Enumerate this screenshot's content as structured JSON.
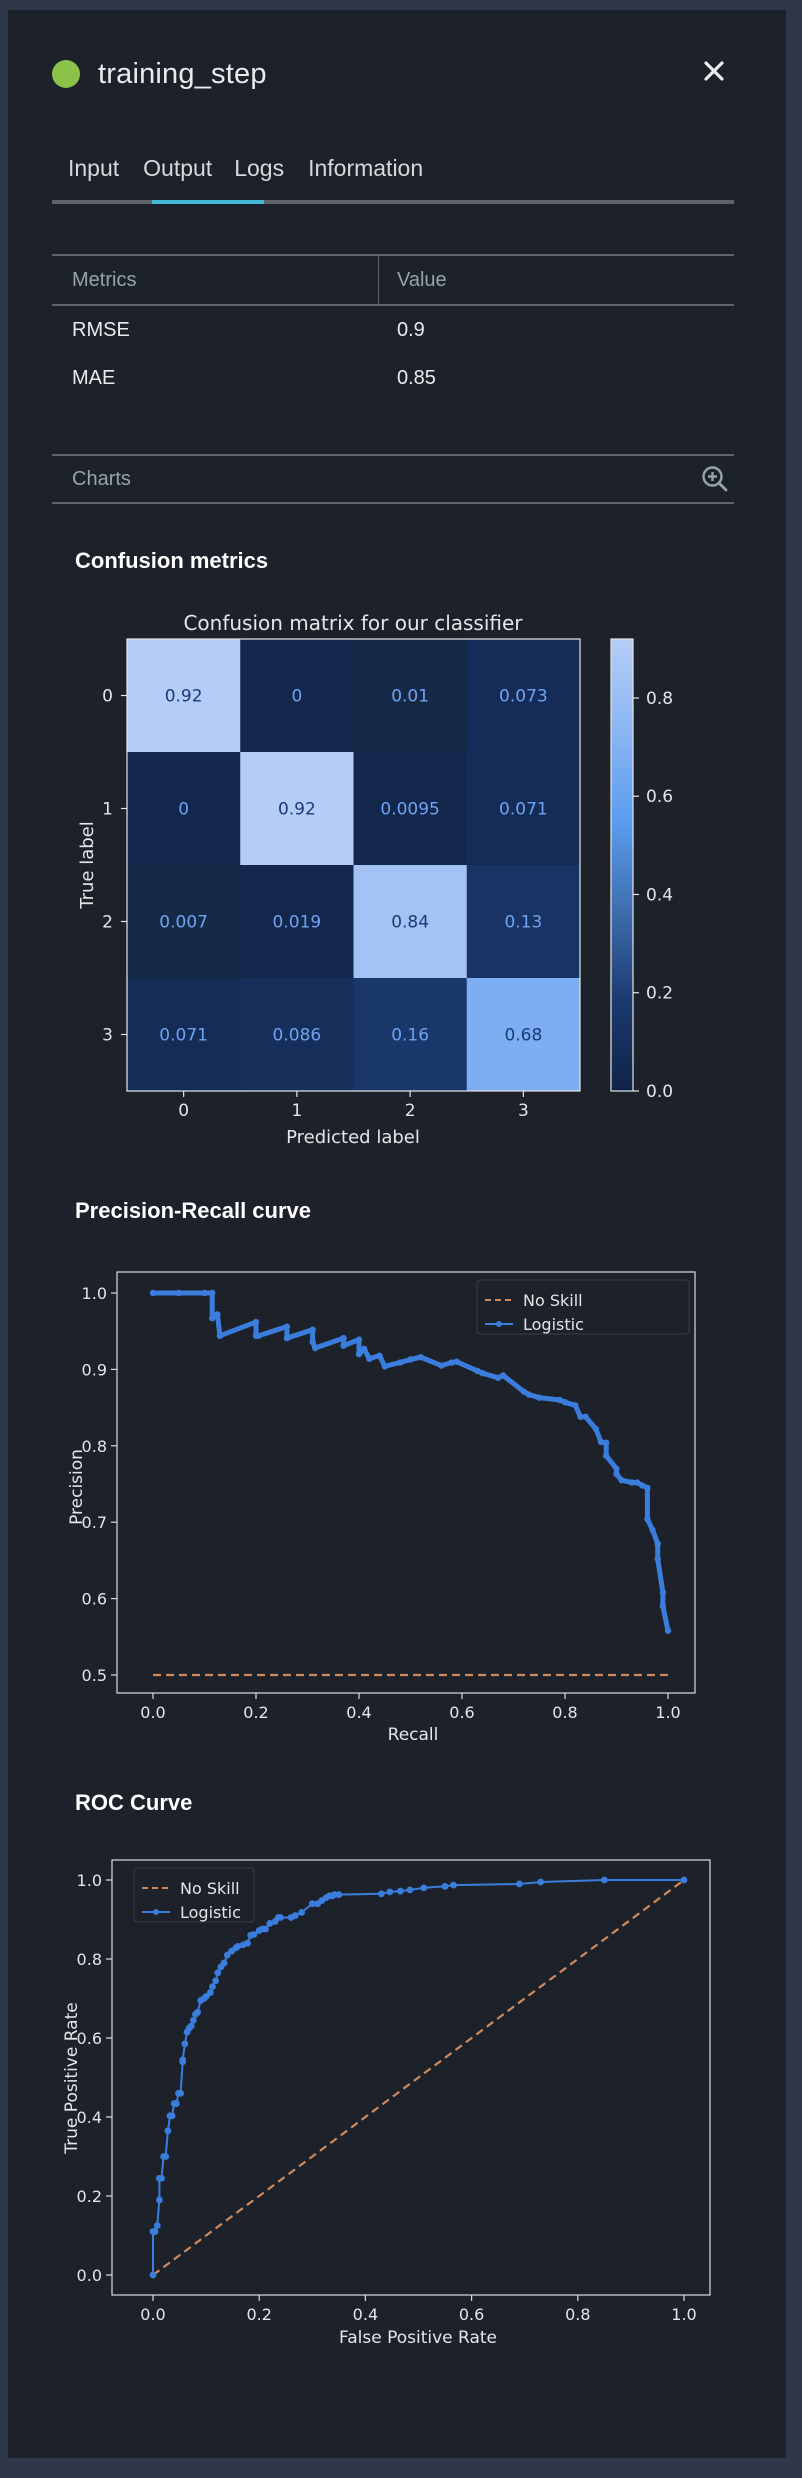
{
  "header": {
    "title": "training_step",
    "status_color": "#8bc34a",
    "close_icon": "close-icon",
    "close_glyph": "✕"
  },
  "tabs": [
    {
      "label": "Input",
      "active": false
    },
    {
      "label": "Output",
      "active": true
    },
    {
      "label": "Logs",
      "active": false
    },
    {
      "label": "Information",
      "active": false
    }
  ],
  "metrics_table": {
    "columns": [
      "Metrics",
      "Value"
    ],
    "rows": [
      {
        "metric": "RMSE",
        "value": "0.9"
      },
      {
        "metric": "MAE",
        "value": "0.85"
      }
    ]
  },
  "charts_section": {
    "label": "Charts",
    "icon": "zoom-in-icon"
  },
  "sections": {
    "confusion": "Confusion metrics",
    "pr": "Precision-Recall curve",
    "roc": "ROC Curve"
  },
  "colors": {
    "accent": "#44b9d6",
    "logistic": "#3b7ddd",
    "no_skill": "#d0895a"
  },
  "chart_data": [
    {
      "type": "heatmap",
      "title": "Confusion matrix for our classifier",
      "xlabel": "Predicted label",
      "ylabel": "True label",
      "x_ticks": [
        "0",
        "1",
        "2",
        "3"
      ],
      "y_ticks": [
        "0",
        "1",
        "2",
        "3"
      ],
      "values": [
        [
          0.92,
          0,
          0.01,
          0.073
        ],
        [
          0,
          0.92,
          0.0095,
          0.071
        ],
        [
          0.007,
          0.019,
          0.84,
          0.13
        ],
        [
          0.071,
          0.086,
          0.16,
          0.68
        ]
      ],
      "labels": [
        [
          "0.92",
          "0",
          "0.01",
          "0.073"
        ],
        [
          "0",
          "0.92",
          "0.0095",
          "0.071"
        ],
        [
          "0.007",
          "0.019",
          "0.84",
          "0.13"
        ],
        [
          "0.071",
          "0.086",
          "0.16",
          "0.68"
        ]
      ],
      "colorbar": {
        "range": [
          0,
          0.92
        ],
        "ticks": [
          "0.0",
          "0.2",
          "0.4",
          "0.6",
          "0.8"
        ],
        "tick_values": [
          0,
          0.2,
          0.4,
          0.6,
          0.8
        ]
      }
    },
    {
      "type": "line",
      "title": "",
      "xlabel": "Recall",
      "ylabel": "Precision",
      "xlim": [
        -0.05,
        1.05
      ],
      "ylim": [
        0.476,
        1.022
      ],
      "x_ticks": [
        "0.0",
        "0.2",
        "0.4",
        "0.6",
        "0.8",
        "1.0"
      ],
      "x_tick_values": [
        0,
        0.2,
        0.4,
        0.6,
        0.8,
        1.0
      ],
      "y_ticks": [
        "0.5",
        "0.6",
        "0.7",
        "0.8",
        "0.9",
        "1.0"
      ],
      "y_tick_values": [
        0.5,
        0.6,
        0.7,
        0.8,
        0.9,
        1.0
      ],
      "legend": "top-right",
      "series": [
        {
          "name": "No Skill",
          "style": "dashed",
          "x": [
            0,
            1
          ],
          "y": [
            0.5,
            0.5
          ]
        },
        {
          "name": "Logistic",
          "style": "solid-marker",
          "x": [
            0.0,
            0.05,
            0.1,
            0.115,
            0.115,
            0.12,
            0.125,
            0.13,
            0.13,
            0.2,
            0.2,
            0.205,
            0.26,
            0.26,
            0.31,
            0.31,
            0.315,
            0.37,
            0.37,
            0.4,
            0.4,
            0.41,
            0.42,
            0.44,
            0.45,
            0.48,
            0.5,
            0.52,
            0.56,
            0.58,
            0.59,
            0.63,
            0.64,
            0.67,
            0.68,
            0.72,
            0.73,
            0.75,
            0.79,
            0.8,
            0.82,
            0.83,
            0.84,
            0.86,
            0.87,
            0.88,
            0.88,
            0.9,
            0.9,
            0.91,
            0.93,
            0.94,
            0.95,
            0.96,
            0.96,
            0.97,
            0.98,
            0.98,
            0.99,
            0.99,
            1.0
          ],
          "y": [
            1.0,
            1.0,
            1.0,
            1.0,
            0.967,
            0.97,
            0.972,
            0.944,
            0.944,
            0.962,
            0.944,
            0.944,
            0.956,
            0.941,
            0.952,
            0.936,
            0.928,
            0.941,
            0.931,
            0.939,
            0.92,
            0.927,
            0.914,
            0.918,
            0.904,
            0.909,
            0.913,
            0.916,
            0.905,
            0.909,
            0.91,
            0.898,
            0.895,
            0.889,
            0.892,
            0.871,
            0.867,
            0.863,
            0.86,
            0.857,
            0.853,
            0.838,
            0.838,
            0.822,
            0.805,
            0.804,
            0.787,
            0.77,
            0.763,
            0.755,
            0.752,
            0.752,
            0.748,
            0.745,
            0.704,
            0.69,
            0.672,
            0.652,
            0.608,
            0.59,
            0.558
          ]
        }
      ]
    },
    {
      "type": "line",
      "title": "",
      "xlabel": "False Positive Rate",
      "ylabel": "True Positive Rate",
      "xlim": [
        -0.05,
        1.05
      ],
      "ylim": [
        -0.05,
        1.05
      ],
      "x_ticks": [
        "0.0",
        "0.2",
        "0.4",
        "0.6",
        "0.8",
        "1.0"
      ],
      "x_tick_values": [
        0,
        0.2,
        0.4,
        0.6,
        0.8,
        1.0
      ],
      "y_ticks": [
        "0.0",
        "0.2",
        "0.4",
        "0.6",
        "0.8",
        "1.0"
      ],
      "y_tick_values": [
        0,
        0.2,
        0.4,
        0.6,
        0.8,
        1.0
      ],
      "legend": "top-left",
      "series": [
        {
          "name": "No Skill",
          "style": "dashed",
          "x": [
            0,
            1
          ],
          "y": [
            0,
            1
          ]
        },
        {
          "name": "Logistic",
          "style": "solid-marker",
          "x": [
            0.0,
            0.0,
            0.004,
            0.008,
            0.012,
            0.012,
            0.016,
            0.02,
            0.024,
            0.028,
            0.032,
            0.036,
            0.04,
            0.044,
            0.048,
            0.052,
            0.056,
            0.056,
            0.06,
            0.064,
            0.068,
            0.072,
            0.076,
            0.08,
            0.084,
            0.09,
            0.096,
            0.1,
            0.108,
            0.112,
            0.118,
            0.122,
            0.128,
            0.134,
            0.14,
            0.148,
            0.156,
            0.16,
            0.17,
            0.178,
            0.184,
            0.19,
            0.2,
            0.206,
            0.212,
            0.22,
            0.23,
            0.236,
            0.24,
            0.26,
            0.268,
            0.28,
            0.3,
            0.31,
            0.318,
            0.326,
            0.332,
            0.338,
            0.342,
            0.35,
            0.43,
            0.446,
            0.466,
            0.484,
            0.51,
            0.55,
            0.566,
            0.69,
            0.73,
            0.85,
            1.0
          ],
          "y": [
            0.0,
            0.11,
            0.11,
            0.125,
            0.19,
            0.245,
            0.245,
            0.3,
            0.3,
            0.365,
            0.403,
            0.403,
            0.434,
            0.434,
            0.46,
            0.46,
            0.54,
            0.545,
            0.585,
            0.615,
            0.625,
            0.63,
            0.645,
            0.66,
            0.665,
            0.695,
            0.7,
            0.705,
            0.715,
            0.73,
            0.745,
            0.765,
            0.78,
            0.79,
            0.81,
            0.82,
            0.828,
            0.832,
            0.836,
            0.84,
            0.86,
            0.862,
            0.872,
            0.876,
            0.876,
            0.89,
            0.895,
            0.905,
            0.905,
            0.905,
            0.91,
            0.918,
            0.94,
            0.94,
            0.948,
            0.955,
            0.96,
            0.96,
            0.963,
            0.963,
            0.965,
            0.97,
            0.972,
            0.975,
            0.98,
            0.984,
            0.987,
            0.99,
            0.995,
            1.0,
            1.0
          ]
        }
      ]
    }
  ]
}
